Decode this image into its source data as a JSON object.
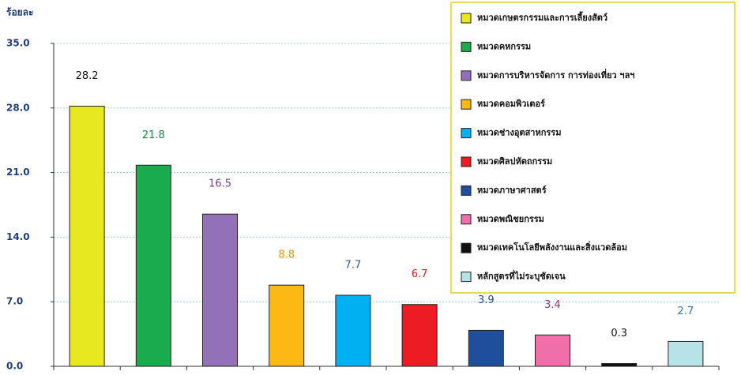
{
  "chart_data": {
    "type": "bar",
    "y_label": "ร้อยละ",
    "categories": [
      "หมวดเกษตรกรรมและการเลี้ยงสัตว์",
      "หมวดคหกรรม",
      "หมวดการบริหารจัดการ การท่องเที่ยว ฯลฯ",
      "หมวดคอมพิวเตอร์",
      "หมวดช่างอุตสาหกรรม",
      "หมวดศิลปหัตถกรรม",
      "หมวดภาษาศาสตร์",
      "หมวดพณิชยกรรม",
      "หมวดเทคโนโลยีพลังงานและสิ่งแวดล้อม",
      "หลักสูตรที่ไม่ระบุชัดเจน"
    ],
    "values": [
      28.2,
      21.8,
      16.5,
      8.8,
      7.7,
      6.7,
      3.9,
      3.4,
      0.3,
      2.7
    ],
    "colors": [
      "#e8e820",
      "#1aab4f",
      "#9370b8",
      "#fdb813",
      "#00b0f0",
      "#ed1c24",
      "#1f4e9c",
      "#f06eaa",
      "#111111",
      "#b7e3e8"
    ],
    "label_colors": [
      "#111111",
      "#1a8a3f",
      "#7a3f8f",
      "#e8901a",
      "#3a5a8a",
      "#e02020",
      "#2a4a9c",
      "#9b2f8f",
      "#111111",
      "#2e75b6"
    ],
    "ylim": [
      0,
      35
    ],
    "yticks": [
      {
        "value": 0,
        "label": "0.0"
      },
      {
        "value": 7,
        "label": "7.0"
      },
      {
        "value": 14,
        "label": "14.0"
      },
      {
        "value": 21,
        "label": "21.0"
      },
      {
        "value": 28,
        "label": "28.0"
      },
      {
        "value": 35,
        "label": "35.0"
      }
    ],
    "grid": true,
    "legend": "upper right"
  }
}
